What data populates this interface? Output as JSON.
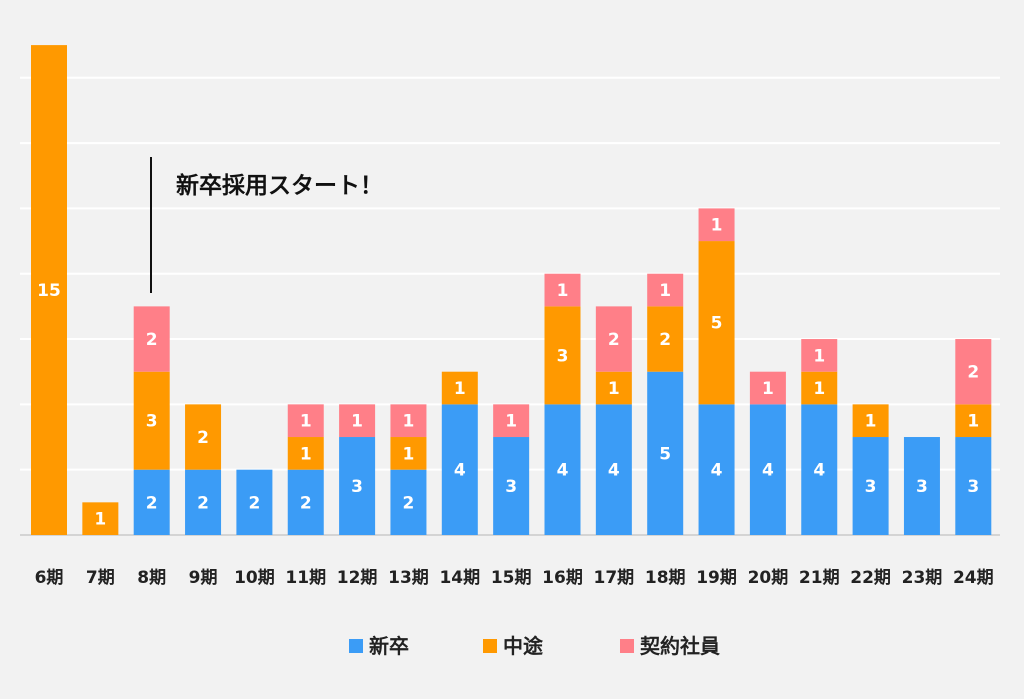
{
  "chart_data": {
    "type": "bar",
    "stacked": true,
    "categories": [
      "6期",
      "7期",
      "8期",
      "9期",
      "10期",
      "11期",
      "12期",
      "13期",
      "14期",
      "15期",
      "16期",
      "17期",
      "18期",
      "19期",
      "20期",
      "21期",
      "22期",
      "23期",
      "24期"
    ],
    "series": [
      {
        "name": "新卒",
        "color": "#3b9cf6",
        "values": [
          0,
          0,
          2,
          2,
          2,
          2,
          3,
          2,
          4,
          3,
          4,
          4,
          5,
          4,
          4,
          4,
          3,
          3,
          3
        ]
      },
      {
        "name": "中途",
        "color": "#ff9900",
        "values": [
          15,
          1,
          3,
          2,
          0,
          1,
          0,
          1,
          1,
          0,
          3,
          1,
          2,
          5,
          0,
          1,
          1,
          0,
          1
        ]
      },
      {
        "name": "契約社員",
        "color": "#ff7f88",
        "values": [
          0,
          0,
          2,
          0,
          0,
          1,
          1,
          1,
          0,
          1,
          1,
          2,
          1,
          1,
          1,
          1,
          0,
          0,
          2
        ]
      }
    ],
    "ylim": [
      0,
      15
    ],
    "grid": true,
    "legend_position": "bottom",
    "annotation": {
      "text": "新卒採用スタート！",
      "category": "8期"
    }
  }
}
